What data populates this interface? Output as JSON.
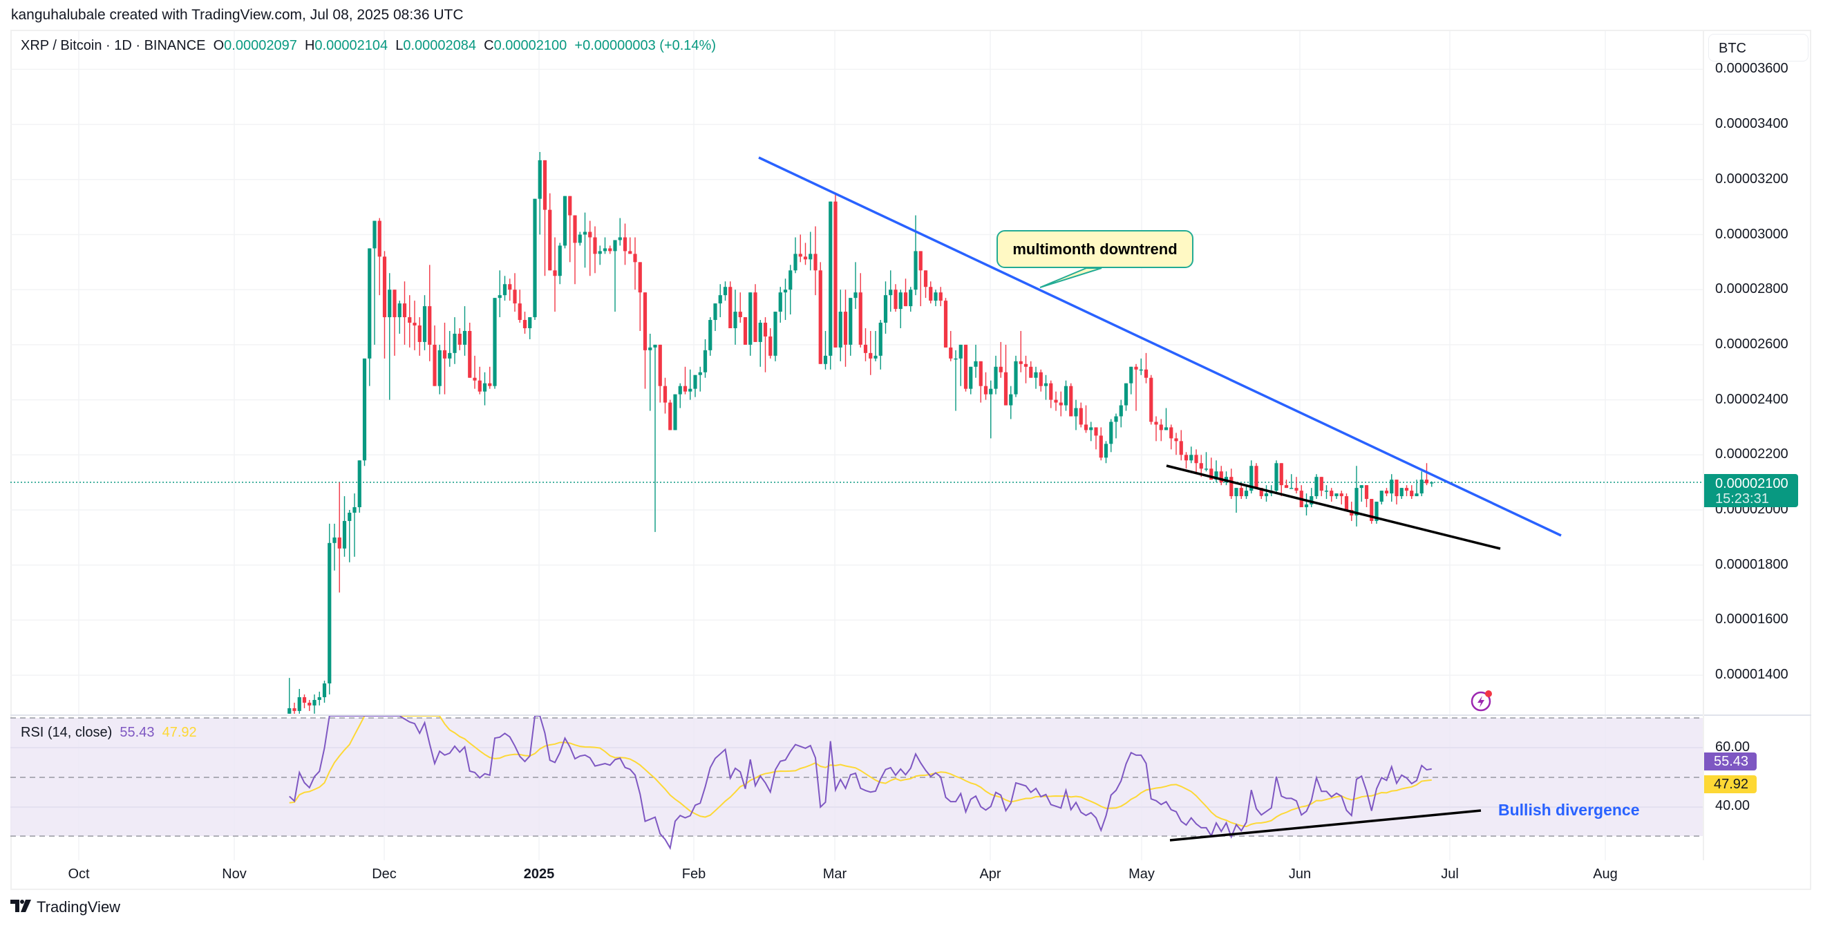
{
  "credit": "kanguhalubale created with TradingView.com, Jul 08, 2025 08:36 UTC",
  "header": {
    "symbol": "XRP / Bitcoin · 1D · BINANCE",
    "open_label": "O",
    "open": "0.00002097",
    "high_label": "H",
    "high": "0.00002104",
    "low_label": "L",
    "low": "0.00002084",
    "close_label": "C",
    "close": "0.00002100",
    "change": "+0.00000003 (+0.14%)"
  },
  "currency_button": "BTC",
  "price_axis": {
    "ticks": [
      "0.00003600",
      "0.00003400",
      "0.00003200",
      "0.00003000",
      "0.00002800",
      "0.00002600",
      "0.00002400",
      "0.00002200",
      "0.00002000",
      "0.00001800",
      "0.00001600",
      "0.00001400"
    ],
    "last_price": "0.00002100",
    "countdown": "15:23:31"
  },
  "time_axis": {
    "ticks": [
      "Oct",
      "Nov",
      "Dec",
      "2025",
      "Feb",
      "Mar",
      "Apr",
      "May",
      "Jun",
      "Jul",
      "Aug"
    ]
  },
  "rsi": {
    "title": "RSI (14, close)",
    "value": "55.43",
    "ma_value": "47.92",
    "ticks": [
      "60.00",
      "40.00"
    ]
  },
  "annotations": {
    "callout": "multimonth downtrend",
    "divergence_label": "Bullish divergence"
  },
  "brand": "TradingView",
  "colors": {
    "up": "#089981",
    "down": "#f23645",
    "trendline": "#2962ff",
    "support": "#000000",
    "rsi_line": "#7e57c2",
    "rsi_ma": "#fdd835",
    "rsi_band": "#ede7f6",
    "callout_bg": "#fff9c4",
    "callout_border": "#22ab94"
  },
  "chart_data": {
    "type": "candlestick",
    "title": "XRP / Bitcoin · 1D · BINANCE",
    "unit": "BTC (values ×1e-8)",
    "ylim": [
      1300,
      3650
    ],
    "x_ticks": [
      "Oct",
      "Nov",
      "Dec",
      "2025",
      "Feb",
      "Mar",
      "Apr",
      "May",
      "Jun",
      "Jul",
      "Aug"
    ],
    "start_date": "2024-11-12",
    "ohlc": [
      [
        1260,
        1390,
        1250,
        1280
      ],
      [
        1280,
        1300,
        1240,
        1270
      ],
      [
        1270,
        1350,
        1260,
        1320
      ],
      [
        1320,
        1330,
        1280,
        1300
      ],
      [
        1300,
        1310,
        1270,
        1290
      ],
      [
        1290,
        1330,
        1260,
        1310
      ],
      [
        1310,
        1340,
        1290,
        1320
      ],
      [
        1320,
        1380,
        1300,
        1370
      ],
      [
        1370,
        1950,
        1330,
        1880
      ],
      [
        1880,
        1950,
        1780,
        1900
      ],
      [
        1900,
        2100,
        1700,
        1860
      ],
      [
        1860,
        2050,
        1830,
        1960
      ],
      [
        1960,
        2000,
        1810,
        1990
      ],
      [
        1990,
        2060,
        1830,
        2010
      ],
      [
        2010,
        2180,
        1990,
        2180
      ],
      [
        2180,
        2550,
        2160,
        2550
      ],
      [
        2550,
        2950,
        2450,
        2950
      ],
      [
        2950,
        3050,
        2600,
        3050
      ],
      [
        3050,
        3060,
        2780,
        2920
      ],
      [
        2920,
        2940,
        2550,
        2700
      ],
      [
        2700,
        2860,
        2400,
        2800
      ],
      [
        2800,
        2800,
        2560,
        2700
      ],
      [
        2700,
        2760,
        2640,
        2750
      ],
      [
        2750,
        2830,
        2600,
        2700
      ],
      [
        2700,
        2780,
        2590,
        2680
      ],
      [
        2680,
        2760,
        2580,
        2670
      ],
      [
        2670,
        2700,
        2560,
        2610
      ],
      [
        2610,
        2780,
        2580,
        2740
      ],
      [
        2740,
        2890,
        2540,
        2600
      ],
      [
        2600,
        2670,
        2460,
        2450
      ],
      [
        2450,
        2600,
        2420,
        2580
      ],
      [
        2580,
        2680,
        2420,
        2550
      ],
      [
        2550,
        2650,
        2520,
        2570
      ],
      [
        2570,
        2700,
        2530,
        2640
      ],
      [
        2640,
        2660,
        2580,
        2600
      ],
      [
        2600,
        2740,
        2560,
        2650
      ],
      [
        2650,
        2680,
        2490,
        2480
      ],
      [
        2480,
        2560,
        2440,
        2470
      ],
      [
        2470,
        2520,
        2420,
        2430
      ],
      [
        2430,
        2500,
        2380,
        2460
      ],
      [
        2460,
        2520,
        2440,
        2450
      ],
      [
        2450,
        2770,
        2440,
        2770
      ],
      [
        2770,
        2870,
        2700,
        2780
      ],
      [
        2780,
        2850,
        2760,
        2820
      ],
      [
        2820,
        2840,
        2760,
        2800
      ],
      [
        2800,
        2860,
        2720,
        2750
      ],
      [
        2750,
        2800,
        2680,
        2690
      ],
      [
        2690,
        2720,
        2640,
        2660
      ],
      [
        2660,
        2700,
        2620,
        2700
      ],
      [
        2700,
        3010,
        2690,
        3130
      ],
      [
        3130,
        3300,
        3000,
        3270
      ],
      [
        3270,
        3200,
        2850,
        3090
      ],
      [
        3090,
        3150,
        2930,
        2870
      ],
      [
        2870,
        2990,
        2720,
        2850
      ],
      [
        2850,
        2970,
        2820,
        2960
      ],
      [
        2960,
        3100,
        2950,
        3140
      ],
      [
        3140,
        3090,
        2900,
        3070
      ],
      [
        3070,
        3040,
        2820,
        2970
      ],
      [
        2970,
        3010,
        2960,
        3000
      ],
      [
        3000,
        3080,
        2880,
        3010
      ],
      [
        3010,
        3050,
        2850,
        2990
      ],
      [
        2990,
        3030,
        2860,
        2930
      ],
      [
        2930,
        2960,
        2890,
        2940
      ],
      [
        2940,
        2990,
        2930,
        2950
      ],
      [
        2950,
        2960,
        2930,
        2940
      ],
      [
        2940,
        2980,
        2720,
        2980
      ],
      [
        2980,
        3060,
        2960,
        2990
      ],
      [
        2990,
        3040,
        2890,
        2940
      ],
      [
        2940,
        2990,
        2930,
        2930
      ],
      [
        2930,
        2990,
        2800,
        2900
      ],
      [
        2900,
        2860,
        2650,
        2790
      ],
      [
        2790,
        2700,
        2440,
        2580
      ],
      [
        2580,
        2640,
        2360,
        2590
      ],
      [
        2590,
        2590,
        1920,
        2600
      ],
      [
        2600,
        2600,
        2390,
        2450
      ],
      [
        2450,
        2480,
        2350,
        2390
      ],
      [
        2390,
        2400,
        2300,
        2290
      ],
      [
        2290,
        2420,
        2290,
        2420
      ],
      [
        2420,
        2460,
        2370,
        2450
      ],
      [
        2450,
        2520,
        2420,
        2430
      ],
      [
        2430,
        2510,
        2400,
        2440
      ],
      [
        2440,
        2480,
        2410,
        2490
      ],
      [
        2490,
        2520,
        2430,
        2500
      ],
      [
        2500,
        2620,
        2480,
        2580
      ],
      [
        2580,
        2700,
        2560,
        2690
      ],
      [
        2690,
        2740,
        2650,
        2750
      ],
      [
        2750,
        2820,
        2700,
        2780
      ],
      [
        2780,
        2830,
        2760,
        2810
      ],
      [
        2810,
        2830,
        2660,
        2660
      ],
      [
        2660,
        2800,
        2600,
        2720
      ],
      [
        2720,
        2790,
        2680,
        2700
      ],
      [
        2700,
        2700,
        2640,
        2600
      ],
      [
        2600,
        2720,
        2560,
        2790
      ],
      [
        2790,
        2820,
        2640,
        2610
      ],
      [
        2610,
        2690,
        2520,
        2680
      ],
      [
        2680,
        2700,
        2500,
        2630
      ],
      [
        2630,
        2660,
        2550,
        2560
      ],
      [
        2560,
        2720,
        2540,
        2720
      ],
      [
        2720,
        2810,
        2680,
        2790
      ],
      [
        2790,
        2840,
        2690,
        2800
      ],
      [
        2800,
        2890,
        2710,
        2870
      ],
      [
        2870,
        2990,
        2860,
        2930
      ],
      [
        2930,
        3000,
        2900,
        2920
      ],
      [
        2920,
        2970,
        2890,
        2910
      ],
      [
        2910,
        3010,
        2870,
        2930
      ],
      [
        2930,
        3030,
        2780,
        2870
      ],
      [
        2870,
        2900,
        2640,
        2530
      ],
      [
        2530,
        2650,
        2510,
        2560
      ],
      [
        2560,
        3070,
        2510,
        3120
      ],
      [
        3120,
        3150,
        2670,
        2590
      ],
      [
        2590,
        2800,
        2540,
        2720
      ],
      [
        2720,
        2800,
        2520,
        2600
      ],
      [
        2600,
        2710,
        2560,
        2770
      ],
      [
        2770,
        2900,
        2730,
        2790
      ],
      [
        2790,
        2860,
        2590,
        2600
      ],
      [
        2600,
        2660,
        2540,
        2570
      ],
      [
        2570,
        2650,
        2490,
        2550
      ],
      [
        2550,
        2650,
        2540,
        2560
      ],
      [
        2560,
        2690,
        2510,
        2680
      ],
      [
        2680,
        2830,
        2640,
        2780
      ],
      [
        2780,
        2870,
        2720,
        2800
      ],
      [
        2800,
        2820,
        2720,
        2730
      ],
      [
        2730,
        2800,
        2660,
        2790
      ],
      [
        2790,
        2840,
        2740,
        2740
      ],
      [
        2740,
        2810,
        2720,
        2800
      ],
      [
        2800,
        3070,
        2780,
        2940
      ],
      [
        2940,
        2930,
        2740,
        2870
      ],
      [
        2870,
        2870,
        2770,
        2810
      ],
      [
        2810,
        2830,
        2750,
        2760
      ],
      [
        2760,
        2800,
        2740,
        2790
      ],
      [
        2790,
        2810,
        2740,
        2760
      ],
      [
        2760,
        2770,
        2590,
        2590
      ],
      [
        2590,
        2650,
        2540,
        2550
      ],
      [
        2550,
        2580,
        2360,
        2550
      ],
      [
        2550,
        2580,
        2450,
        2600
      ],
      [
        2600,
        2580,
        2430,
        2440
      ],
      [
        2440,
        2490,
        2420,
        2520
      ],
      [
        2520,
        2600,
        2480,
        2540
      ],
      [
        2540,
        2530,
        2390,
        2450
      ],
      [
        2450,
        2500,
        2400,
        2420
      ],
      [
        2420,
        2470,
        2260,
        2440
      ],
      [
        2440,
        2560,
        2420,
        2520
      ],
      [
        2520,
        2610,
        2480,
        2500
      ],
      [
        2500,
        2600,
        2410,
        2380
      ],
      [
        2380,
        2450,
        2330,
        2420
      ],
      [
        2420,
        2560,
        2410,
        2540
      ],
      [
        2540,
        2650,
        2500,
        2530
      ],
      [
        2530,
        2560,
        2460,
        2520
      ],
      [
        2520,
        2540,
        2490,
        2480
      ],
      [
        2480,
        2520,
        2440,
        2500
      ],
      [
        2500,
        2510,
        2430,
        2450
      ],
      [
        2450,
        2490,
        2400,
        2460
      ],
      [
        2460,
        2470,
        2370,
        2400
      ],
      [
        2400,
        2430,
        2360,
        2390
      ],
      [
        2390,
        2430,
        2340,
        2380
      ],
      [
        2380,
        2470,
        2360,
        2450
      ],
      [
        2450,
        2460,
        2370,
        2340
      ],
      [
        2340,
        2400,
        2290,
        2370
      ],
      [
        2370,
        2390,
        2300,
        2310
      ],
      [
        2310,
        2380,
        2280,
        2290
      ],
      [
        2290,
        2320,
        2250,
        2300
      ],
      [
        2300,
        2290,
        2220,
        2270
      ],
      [
        2270,
        2300,
        2180,
        2190
      ],
      [
        2190,
        2250,
        2170,
        2240
      ],
      [
        2240,
        2330,
        2210,
        2320
      ],
      [
        2320,
        2350,
        2260,
        2340
      ],
      [
        2340,
        2400,
        2300,
        2380
      ],
      [
        2380,
        2440,
        2360,
        2460
      ],
      [
        2460,
        2520,
        2420,
        2520
      ],
      [
        2520,
        2530,
        2360,
        2510
      ],
      [
        2510,
        2550,
        2490,
        2510
      ],
      [
        2510,
        2570,
        2460,
        2480
      ],
      [
        2480,
        2490,
        2310,
        2320
      ],
      [
        2320,
        2340,
        2250,
        2310
      ],
      [
        2310,
        2330,
        2250,
        2290
      ],
      [
        2290,
        2370,
        2290,
        2300
      ],
      [
        2300,
        2310,
        2220,
        2260
      ],
      [
        2260,
        2280,
        2200,
        2250
      ],
      [
        2250,
        2290,
        2180,
        2200
      ],
      [
        2200,
        2210,
        2150,
        2180
      ],
      [
        2180,
        2230,
        2170,
        2200
      ],
      [
        2200,
        2220,
        2130,
        2170
      ],
      [
        2170,
        2200,
        2120,
        2150
      ],
      [
        2150,
        2210,
        2140,
        2150
      ],
      [
        2150,
        2190,
        2110,
        2110
      ],
      [
        2110,
        2180,
        2100,
        2140
      ],
      [
        2140,
        2160,
        2090,
        2100
      ],
      [
        2100,
        2140,
        2090,
        2120
      ],
      [
        2120,
        2150,
        2040,
        2050
      ],
      [
        2050,
        2080,
        1990,
        2080
      ],
      [
        2080,
        2090,
        2040,
        2050
      ],
      [
        2050,
        2090,
        2040,
        2070
      ],
      [
        2070,
        2180,
        2060,
        2160
      ],
      [
        2160,
        2170,
        2090,
        2080
      ],
      [
        2080,
        2080,
        2040,
        2050
      ],
      [
        2050,
        2090,
        2030,
        2060
      ],
      [
        2060,
        2090,
        2050,
        2070
      ],
      [
        2070,
        2180,
        2060,
        2170
      ],
      [
        2170,
        2160,
        2050,
        2090
      ],
      [
        2090,
        2110,
        2080,
        2080
      ],
      [
        2080,
        2130,
        2080,
        2080
      ],
      [
        2080,
        2120,
        2060,
        2070
      ],
      [
        2070,
        2090,
        2020,
        2010
      ],
      [
        2010,
        2060,
        1980,
        2020
      ],
      [
        2020,
        2080,
        2010,
        2050
      ],
      [
        2050,
        2130,
        2040,
        2120
      ],
      [
        2120,
        2120,
        2050,
        2070
      ],
      [
        2070,
        2090,
        2040,
        2070
      ],
      [
        2070,
        2080,
        2030,
        2050
      ],
      [
        2050,
        2060,
        2040,
        2060
      ],
      [
        2060,
        2070,
        2020,
        2050
      ],
      [
        2050,
        2060,
        2010,
        2000
      ],
      [
        2000,
        2030,
        1960,
        1980
      ],
      [
        1980,
        2160,
        1940,
        2080
      ],
      [
        2080,
        2090,
        2030,
        2090
      ],
      [
        2090,
        2080,
        2010,
        2040
      ],
      [
        2040,
        2040,
        1950,
        1960
      ],
      [
        1960,
        2020,
        1950,
        2030
      ],
      [
        2030,
        2070,
        2020,
        2070
      ],
      [
        2070,
        2080,
        2050,
        2060
      ],
      [
        2060,
        2130,
        2030,
        2110
      ],
      [
        2110,
        2100,
        2020,
        2050
      ],
      [
        2050,
        2080,
        2040,
        2080
      ],
      [
        2080,
        2090,
        2050,
        2070
      ],
      [
        2070,
        2090,
        2040,
        2050
      ],
      [
        2050,
        2110,
        2050,
        2060
      ],
      [
        2060,
        2140,
        2050,
        2110
      ],
      [
        2110,
        2170,
        2090,
        2097
      ],
      [
        2097,
        2104,
        2084,
        2100
      ]
    ]
  }
}
